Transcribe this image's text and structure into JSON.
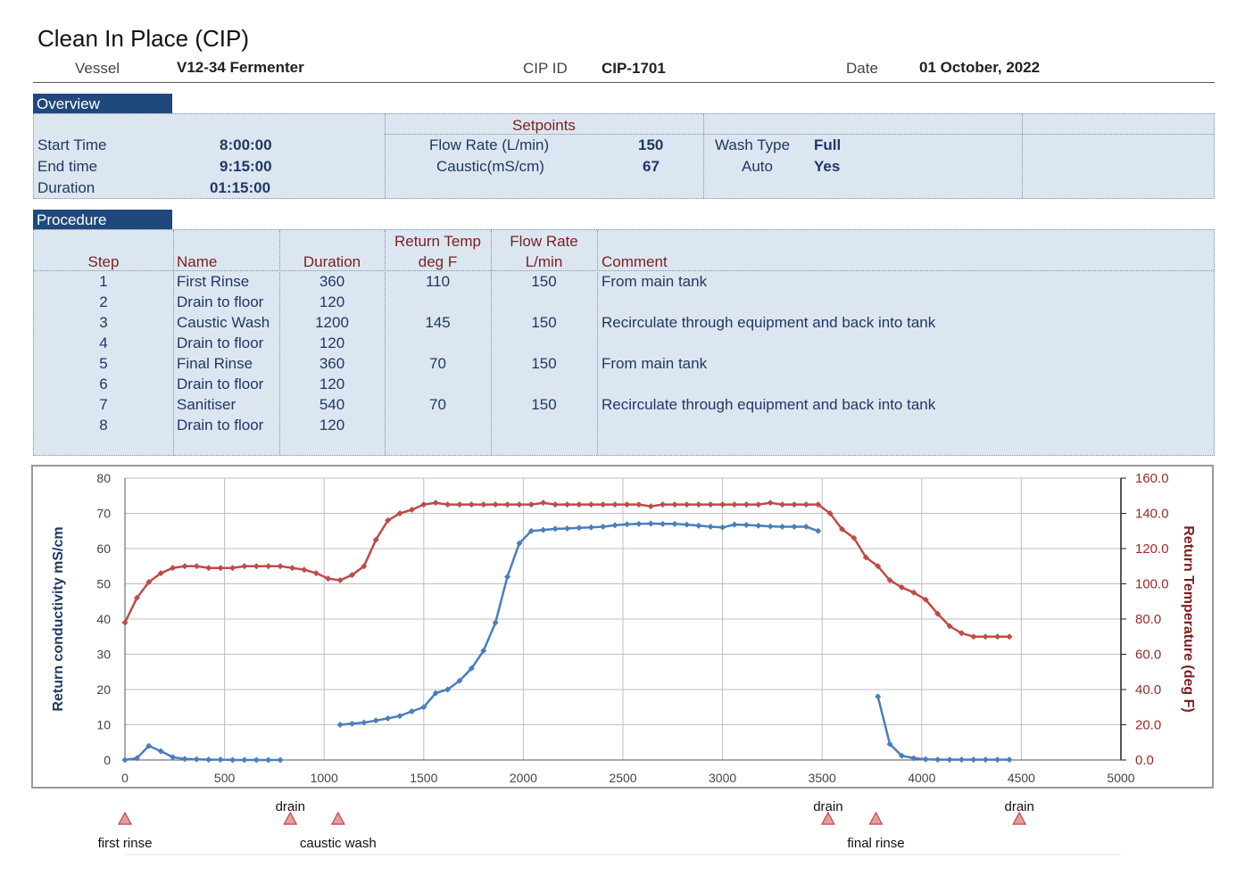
{
  "header": {
    "title": "Clean In Place (CIP)",
    "vessel_label": "Vessel",
    "vessel_value": "V12-34 Fermenter",
    "cip_label": "CIP ID",
    "cip_value": "CIP-1701",
    "date_label": "Date",
    "date_value": "01 October, 2022"
  },
  "overview": {
    "section_title": "Overview",
    "setpoints_title": "Setpoints",
    "start_label": "Start Time",
    "start_value": "8:00:00",
    "end_label": "End time",
    "end_value": "9:15:00",
    "duration_label": "Duration",
    "duration_value": "01:15:00",
    "flow_label": "Flow Rate (L/min)",
    "flow_value": "150",
    "caustic_label": "Caustic(mS/cm)",
    "caustic_value": "67",
    "wash_label": "Wash Type",
    "wash_value": "Full",
    "auto_label": "Auto",
    "auto_value": "Yes"
  },
  "procedure": {
    "section_title": "Procedure",
    "headers": {
      "step": "Step",
      "name": "Name",
      "duration": "Duration",
      "temp1": "Return Temp",
      "temp2": "deg F",
      "flow1": "Flow Rate",
      "flow2": "L/min",
      "comment": "Comment"
    },
    "rows": [
      {
        "step": "1",
        "name": "First Rinse",
        "duration": "360",
        "temp": "110",
        "flow": "150",
        "comment": "From main tank"
      },
      {
        "step": "2",
        "name": "Drain to floor",
        "duration": "120",
        "temp": "",
        "flow": "",
        "comment": ""
      },
      {
        "step": "3",
        "name": "Caustic Wash",
        "duration": "1200",
        "temp": "145",
        "flow": "150",
        "comment": "Recirculate through equipment and back into tank"
      },
      {
        "step": "4",
        "name": "Drain to floor",
        "duration": "120",
        "temp": "",
        "flow": "",
        "comment": ""
      },
      {
        "step": "5",
        "name": "Final Rinse",
        "duration": "360",
        "temp": "70",
        "flow": "150",
        "comment": "From main tank"
      },
      {
        "step": "6",
        "name": "Drain to floor",
        "duration": "120",
        "temp": "",
        "flow": "",
        "comment": ""
      },
      {
        "step": "7",
        "name": "Sanitiser",
        "duration": "540",
        "temp": "70",
        "flow": "150",
        "comment": "Recirculate through equipment and back into tank"
      },
      {
        "step": "8",
        "name": "Drain to floor",
        "duration": "120",
        "temp": "",
        "flow": "",
        "comment": ""
      }
    ]
  },
  "chart_data": {
    "type": "line",
    "title": "",
    "xlabel": "",
    "ylabel": "Return conductivity  mS/cm",
    "y2label": "Return Temperature (deg F)",
    "xlim": [
      0,
      5000
    ],
    "ylim": [
      0,
      80
    ],
    "y2lim": [
      0,
      160
    ],
    "xticks": [
      "0",
      "500",
      "1000",
      "1500",
      "2000",
      "2500",
      "3000",
      "3500",
      "4000",
      "4500",
      "5000"
    ],
    "yticks": [
      "0",
      "10",
      "20",
      "30",
      "40",
      "50",
      "60",
      "70",
      "80"
    ],
    "y2ticks": [
      "0.0",
      "20.0",
      "40.0",
      "60.0",
      "80.0",
      "100.0",
      "120.0",
      "140.0",
      "160.0"
    ],
    "grid": true,
    "colors": {
      "conductivity": "#4a7ebb",
      "temperature": "#be4b48"
    },
    "series": [
      {
        "axis": "y2",
        "points": [
          [
            0,
            78
          ],
          [
            60,
            92
          ],
          [
            120,
            101
          ],
          [
            180,
            106
          ],
          [
            240,
            109
          ],
          [
            300,
            110
          ],
          [
            360,
            110
          ],
          [
            420,
            109
          ],
          [
            480,
            109
          ],
          [
            540,
            109
          ],
          [
            600,
            110
          ],
          [
            660,
            110
          ],
          [
            720,
            110
          ],
          [
            780,
            110
          ],
          [
            840,
            109
          ],
          [
            900,
            108
          ],
          [
            960,
            106
          ],
          [
            1020,
            103
          ],
          [
            1080,
            102
          ],
          [
            1140,
            105
          ],
          [
            1200,
            110
          ],
          [
            1260,
            125
          ],
          [
            1320,
            136
          ],
          [
            1380,
            140
          ],
          [
            1440,
            142
          ],
          [
            1500,
            145
          ],
          [
            1560,
            146
          ],
          [
            1620,
            145
          ],
          [
            1680,
            145
          ],
          [
            1740,
            145
          ],
          [
            1800,
            145
          ],
          [
            1860,
            145
          ],
          [
            1920,
            145
          ],
          [
            1980,
            145
          ],
          [
            2040,
            145
          ],
          [
            2100,
            146
          ],
          [
            2160,
            145
          ],
          [
            2220,
            145
          ],
          [
            2280,
            145
          ],
          [
            2340,
            145
          ],
          [
            2400,
            145
          ],
          [
            2460,
            145
          ],
          [
            2520,
            145
          ],
          [
            2580,
            145
          ],
          [
            2640,
            144
          ],
          [
            2700,
            145
          ],
          [
            2760,
            145
          ],
          [
            2820,
            145
          ],
          [
            2880,
            145
          ],
          [
            2940,
            145
          ],
          [
            3000,
            145
          ],
          [
            3060,
            145
          ],
          [
            3120,
            145
          ],
          [
            3180,
            145
          ],
          [
            3240,
            146
          ],
          [
            3300,
            145
          ],
          [
            3360,
            145
          ],
          [
            3420,
            145
          ],
          [
            3480,
            145
          ],
          [
            3540,
            140
          ],
          [
            3600,
            131
          ],
          [
            3660,
            126
          ],
          [
            3720,
            115
          ],
          [
            3780,
            110
          ],
          [
            3840,
            102
          ],
          [
            3900,
            98
          ],
          [
            3960,
            95
          ],
          [
            4020,
            91
          ],
          [
            4080,
            83
          ],
          [
            4140,
            76
          ],
          [
            4200,
            72
          ],
          [
            4260,
            70
          ],
          [
            4320,
            70
          ],
          [
            4380,
            70
          ],
          [
            4440,
            70
          ]
        ]
      },
      {
        "axis": "y",
        "points": [
          [
            0,
            0
          ],
          [
            60,
            0.5
          ],
          [
            120,
            4
          ],
          [
            180,
            2.5
          ],
          [
            240,
            0.8
          ],
          [
            300,
            0.3
          ],
          [
            360,
            0.2
          ],
          [
            420,
            0.1
          ],
          [
            480,
            0.1
          ],
          [
            540,
            0
          ],
          [
            600,
            0
          ],
          [
            660,
            0
          ],
          [
            720,
            0
          ],
          [
            780,
            0
          ]
        ]
      },
      {
        "axis": "y",
        "points": [
          [
            1080,
            10
          ],
          [
            1140,
            10.3
          ],
          [
            1200,
            10.6
          ],
          [
            1260,
            11.2
          ],
          [
            1320,
            11.8
          ],
          [
            1380,
            12.5
          ],
          [
            1440,
            13.8
          ],
          [
            1500,
            15
          ],
          [
            1560,
            19
          ],
          [
            1620,
            20
          ],
          [
            1680,
            22.5
          ],
          [
            1740,
            26
          ],
          [
            1800,
            31
          ],
          [
            1860,
            39
          ],
          [
            1920,
            52
          ],
          [
            1980,
            61.5
          ],
          [
            2040,
            65
          ],
          [
            2100,
            65.3
          ],
          [
            2160,
            65.6
          ],
          [
            2220,
            65.7
          ],
          [
            2280,
            65.9
          ],
          [
            2340,
            66
          ],
          [
            2400,
            66.2
          ],
          [
            2460,
            66.6
          ],
          [
            2520,
            66.9
          ],
          [
            2580,
            67
          ],
          [
            2640,
            67.1
          ],
          [
            2700,
            67
          ],
          [
            2760,
            67
          ],
          [
            2820,
            66.8
          ],
          [
            2880,
            66.5
          ],
          [
            2940,
            66.2
          ],
          [
            3000,
            66
          ],
          [
            3060,
            66.8
          ],
          [
            3120,
            66.7
          ],
          [
            3180,
            66.5
          ],
          [
            3240,
            66.3
          ],
          [
            3300,
            66.2
          ],
          [
            3360,
            66.2
          ],
          [
            3420,
            66.2
          ],
          [
            3480,
            65
          ]
        ]
      },
      {
        "axis": "y",
        "points": [
          [
            3780,
            18
          ],
          [
            3840,
            4.5
          ],
          [
            3900,
            1.2
          ],
          [
            3960,
            0.5
          ],
          [
            4020,
            0.2
          ],
          [
            4080,
            0.1
          ],
          [
            4140,
            0.1
          ],
          [
            4200,
            0.1
          ],
          [
            4260,
            0.1
          ],
          [
            4320,
            0.1
          ],
          [
            4380,
            0.1
          ],
          [
            4440,
            0.1
          ]
        ]
      }
    ],
    "markers": [
      {
        "x": 0,
        "label": "first rinse",
        "pos": "below"
      },
      {
        "x": 830,
        "label": "drain",
        "pos": "above"
      },
      {
        "x": 1070,
        "label": "caustic wash",
        "pos": "below"
      },
      {
        "x": 3530,
        "label": "drain",
        "pos": "above"
      },
      {
        "x": 3770,
        "label": "final rinse",
        "pos": "below"
      },
      {
        "x": 4490,
        "label": "drain",
        "pos": "above"
      }
    ]
  }
}
